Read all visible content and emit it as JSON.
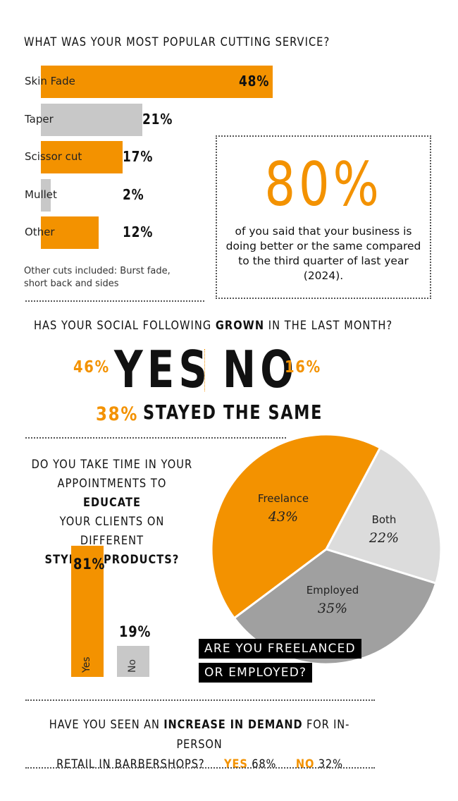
{
  "section1": {
    "title": "WHAT WAS YOUR MOST POPULAR CUTTING SERVICE?",
    "note": "Other cuts included: Burst fade, short back and sides"
  },
  "section2": {
    "big_stat": "80%",
    "text": "of you said that your business is doing better or the same compared to the third quarter of last year (2024)."
  },
  "section3": {
    "title_pre": "HAS YOUR SOCIAL FOLLOWING ",
    "title_bold": "GROWN",
    "title_post": " IN THE LAST MONTH?",
    "yes_pct": "46%",
    "yes_word": "YES",
    "no_word": "NO",
    "no_pct": "16%",
    "same_pct": "38%",
    "same_text": "STAYED THE SAME"
  },
  "section4": {
    "line1": "DO YOU TAKE TIME IN YOUR",
    "line2_pre": "APPOINTMENTS TO ",
    "line2_bold": "EDUCATE",
    "line3": "YOUR CLIENTS ON DIFFERENT",
    "line4_bold": "STYLING PRODUCTS?"
  },
  "section5": {
    "tag_line1": "ARE YOU FREELANCED",
    "tag_line2": "OR EMPLOYED?"
  },
  "section6": {
    "line1_pre": "HAVE YOU SEEN AN ",
    "line1_bold": "INCREASE IN DEMAND",
    "line1_post": " FOR IN-PERSON",
    "line2_pre": "RETAIL IN BARBERSHOPS?",
    "yes_label": "YES",
    "yes_val": "68%",
    "no_label": "NO",
    "no_val": "32%"
  },
  "colors": {
    "orange": "#f39200",
    "light_grey": "#c8c8c8",
    "pie_light": "#dcdcdc",
    "pie_dark": "#a0a0a0"
  },
  "chart_data": [
    {
      "type": "bar",
      "orientation": "horizontal",
      "title": "WHAT WAS YOUR MOST POPULAR CUTTING SERVICE?",
      "categories": [
        "Skin Fade",
        "Taper",
        "Scissor cut",
        "Mullet",
        "Other"
      ],
      "values": [
        48,
        21,
        17,
        2,
        12
      ],
      "value_labels": [
        "48%",
        "21%",
        "17%",
        "2%",
        "12%"
      ],
      "colors": [
        "#f39200",
        "#c8c8c8",
        "#f39200",
        "#c8c8c8",
        "#f39200"
      ]
    },
    {
      "type": "bar",
      "orientation": "vertical",
      "title": "DO YOU TAKE TIME IN YOUR APPOINTMENTS TO EDUCATE YOUR CLIENTS ON DIFFERENT STYLING PRODUCTS?",
      "categories": [
        "Yes",
        "No"
      ],
      "values": [
        81,
        19
      ],
      "value_labels": [
        "81%",
        "19%"
      ],
      "colors": [
        "#f39200",
        "#c8c8c8"
      ]
    },
    {
      "type": "pie",
      "title": "ARE YOU FREELANCED OR EMPLOYED?",
      "categories": [
        "Freelance",
        "Both",
        "Employed"
      ],
      "values": [
        43,
        22,
        35
      ],
      "value_labels": [
        "43%",
        "22%",
        "35%"
      ],
      "colors": [
        "#f39200",
        "#dcdcdc",
        "#a0a0a0"
      ]
    }
  ]
}
